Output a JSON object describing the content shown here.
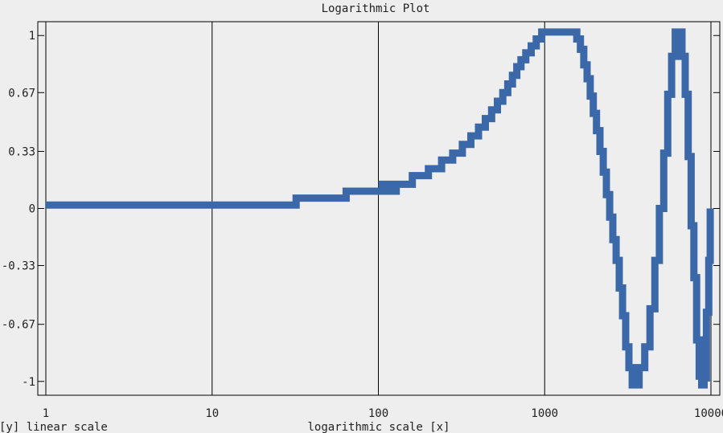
{
  "chart_data": {
    "type": "line",
    "title": "Logarithmic Plot",
    "xlabel": "logarithmic scale [x]",
    "ylabel": "[y] linear scale",
    "x_scale": "log",
    "y_scale": "linear",
    "xlim": [
      1,
      10000
    ],
    "ylim": [
      -1.08,
      1.08
    ],
    "x_ticks": [
      1,
      10,
      100,
      1000,
      10000
    ],
    "x_tick_labels": [
      "1",
      "10",
      "100",
      "1000",
      "10000"
    ],
    "y_ticks": [
      1,
      0.67,
      0.33,
      0,
      -0.33,
      -0.67,
      -1
    ],
    "y_tick_labels": [
      "1",
      "0.67",
      "0.33",
      "0",
      "-0.33",
      "-0.67",
      "-1"
    ],
    "grid": "vertical lines at x ticks",
    "color": "#3a68a8",
    "step": "staircase",
    "series": [
      {
        "points": [
          [
            1,
            0.02
          ],
          [
            32,
            0.02
          ],
          [
            32,
            0.06
          ],
          [
            64,
            0.06
          ],
          [
            64,
            0.1
          ],
          [
            128,
            0.1
          ],
          [
            128,
            0.14
          ],
          [
            100,
            0.14
          ],
          [
            128,
            0.14
          ],
          [
            160,
            0.14
          ],
          [
            160,
            0.19
          ],
          [
            200,
            0.19
          ],
          [
            200,
            0.23
          ],
          [
            240,
            0.23
          ],
          [
            240,
            0.28
          ],
          [
            280,
            0.28
          ],
          [
            280,
            0.32
          ],
          [
            320,
            0.32
          ],
          [
            320,
            0.37
          ],
          [
            360,
            0.37
          ],
          [
            360,
            0.42
          ],
          [
            400,
            0.42
          ],
          [
            400,
            0.47
          ],
          [
            440,
            0.47
          ],
          [
            440,
            0.52
          ],
          [
            480,
            0.52
          ],
          [
            480,
            0.57
          ],
          [
            520,
            0.57
          ],
          [
            520,
            0.62
          ],
          [
            560,
            0.62
          ],
          [
            560,
            0.67
          ],
          [
            600,
            0.67
          ],
          [
            600,
            0.72
          ],
          [
            640,
            0.72
          ],
          [
            640,
            0.77
          ],
          [
            680,
            0.77
          ],
          [
            680,
            0.82
          ],
          [
            720,
            0.82
          ],
          [
            720,
            0.86
          ],
          [
            770,
            0.86
          ],
          [
            770,
            0.9
          ],
          [
            830,
            0.9
          ],
          [
            830,
            0.94
          ],
          [
            890,
            0.94
          ],
          [
            890,
            0.98
          ],
          [
            960,
            0.98
          ],
          [
            960,
            1.02
          ],
          [
            1560,
            1.02
          ],
          [
            1560,
            0.98
          ],
          [
            1640,
            0.98
          ],
          [
            1640,
            0.92
          ],
          [
            1720,
            0.92
          ],
          [
            1720,
            0.83
          ],
          [
            1800,
            0.83
          ],
          [
            1800,
            0.75
          ],
          [
            1880,
            0.75
          ],
          [
            1880,
            0.65
          ],
          [
            1960,
            0.65
          ],
          [
            1960,
            0.55
          ],
          [
            2050,
            0.55
          ],
          [
            2050,
            0.45
          ],
          [
            2150,
            0.45
          ],
          [
            2150,
            0.33
          ],
          [
            2250,
            0.33
          ],
          [
            2250,
            0.21
          ],
          [
            2350,
            0.21
          ],
          [
            2350,
            0.08
          ],
          [
            2460,
            0.08
          ],
          [
            2460,
            -0.05
          ],
          [
            2570,
            -0.05
          ],
          [
            2570,
            -0.18
          ],
          [
            2690,
            -0.18
          ],
          [
            2690,
            -0.3
          ],
          [
            2810,
            -0.3
          ],
          [
            2810,
            -0.46
          ],
          [
            2940,
            -0.46
          ],
          [
            2940,
            -0.62
          ],
          [
            3070,
            -0.62
          ],
          [
            3070,
            -0.8
          ],
          [
            3210,
            -0.8
          ],
          [
            3210,
            -0.92
          ],
          [
            3360,
            -0.92
          ],
          [
            3360,
            -1.02
          ],
          [
            3700,
            -1.02
          ],
          [
            3700,
            -0.92
          ],
          [
            4000,
            -0.92
          ],
          [
            4000,
            -0.8
          ],
          [
            4300,
            -0.8
          ],
          [
            4300,
            -0.58
          ],
          [
            4600,
            -0.58
          ],
          [
            4600,
            -0.3
          ],
          [
            4900,
            -0.3
          ],
          [
            4900,
            0.0
          ],
          [
            5200,
            0.0
          ],
          [
            5200,
            0.32
          ],
          [
            5500,
            0.32
          ],
          [
            5500,
            0.66
          ],
          [
            5800,
            0.66
          ],
          [
            5800,
            0.88
          ],
          [
            6100,
            0.88
          ],
          [
            6100,
            1.02
          ],
          [
            6700,
            1.02
          ],
          [
            6700,
            0.88
          ],
          [
            7000,
            0.88
          ],
          [
            7000,
            0.66
          ],
          [
            7300,
            0.66
          ],
          [
            7300,
            0.3
          ],
          [
            7600,
            0.3
          ],
          [
            7600,
            -0.1
          ],
          [
            7900,
            -0.1
          ],
          [
            7900,
            -0.4
          ],
          [
            8200,
            -0.4
          ],
          [
            8200,
            -0.76
          ],
          [
            8500,
            -0.76
          ],
          [
            8500,
            -0.97
          ],
          [
            8800,
            -0.97
          ],
          [
            8800,
            -1.02
          ],
          [
            9100,
            -1.02
          ],
          [
            9100,
            -0.98
          ],
          [
            9400,
            -0.98
          ],
          [
            9400,
            -0.6
          ],
          [
            9700,
            -0.6
          ],
          [
            9700,
            -0.3
          ],
          [
            9900,
            -0.3
          ],
          [
            9900,
            0.0
          ]
        ]
      }
    ]
  }
}
